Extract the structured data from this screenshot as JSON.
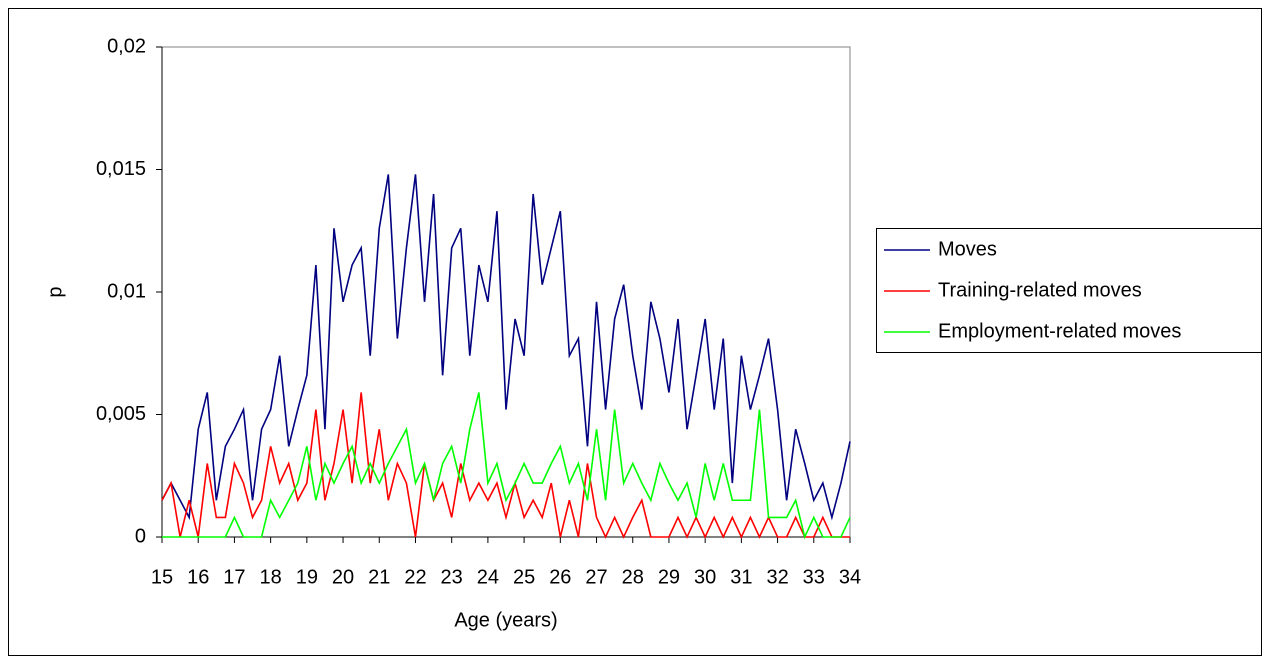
{
  "chart_data": {
    "type": "line",
    "x_label": "Age (years)",
    "y_label": "p",
    "x": [
      15,
      15.25,
      15.5,
      15.75,
      16,
      16.25,
      16.5,
      16.75,
      17,
      17.25,
      17.5,
      17.75,
      18,
      18.25,
      18.5,
      18.75,
      19,
      19.25,
      19.5,
      19.75,
      20,
      20.25,
      20.5,
      20.75,
      21,
      21.25,
      21.5,
      21.75,
      22,
      22.25,
      22.5,
      22.75,
      23,
      23.25,
      23.5,
      23.75,
      24,
      24.25,
      24.5,
      24.75,
      25,
      25.25,
      25.5,
      25.75,
      26,
      26.25,
      26.5,
      26.75,
      27,
      27.25,
      27.5,
      27.75,
      28,
      28.25,
      28.5,
      28.75,
      29,
      29.25,
      29.5,
      29.75,
      30,
      30.25,
      30.5,
      30.75,
      31,
      31.25,
      31.5,
      31.75,
      32,
      32.25,
      32.5,
      32.75,
      33,
      33.25,
      33.5,
      33.75,
      34
    ],
    "series": [
      {
        "name": "Moves",
        "color": "#000080",
        "values": [
          0.0015,
          0.0022,
          0.0015,
          0.0008,
          0.0044,
          0.0059,
          0.0015,
          0.0037,
          0.0044,
          0.0052,
          0.0015,
          0.0044,
          0.0052,
          0.0074,
          0.0037,
          0.0052,
          0.0066,
          0.0111,
          0.0044,
          0.0126,
          0.0096,
          0.0111,
          0.0118,
          0.0074,
          0.0126,
          0.0148,
          0.0081,
          0.0118,
          0.0148,
          0.0096,
          0.014,
          0.0066,
          0.0118,
          0.0126,
          0.0074,
          0.0111,
          0.0096,
          0.0133,
          0.0052,
          0.0089,
          0.0074,
          0.014,
          0.0103,
          0.0118,
          0.0133,
          0.0074,
          0.0081,
          0.0037,
          0.0096,
          0.0052,
          0.0089,
          0.0103,
          0.0074,
          0.0052,
          0.0096,
          0.0081,
          0.0059,
          0.0089,
          0.0044,
          0.0066,
          0.0089,
          0.0052,
          0.0081,
          0.0022,
          0.0074,
          0.0052,
          0.0066,
          0.0081,
          0.0052,
          0.0015,
          0.0044,
          0.003,
          0.0015,
          0.0022,
          0.0008,
          0.0022,
          0.0039
        ]
      },
      {
        "name": "Training-related moves",
        "color": "#ff0000",
        "values": [
          0.0015,
          0.0022,
          0,
          0.0015,
          0,
          0.003,
          0.0008,
          0.0008,
          0.003,
          0.0022,
          0.0008,
          0.0015,
          0.0037,
          0.0022,
          0.003,
          0.0015,
          0.0022,
          0.0052,
          0.0015,
          0.003,
          0.0052,
          0.0022,
          0.0059,
          0.0022,
          0.0044,
          0.0015,
          0.003,
          0.0022,
          0,
          0.003,
          0.0015,
          0.0022,
          0.0008,
          0.003,
          0.0015,
          0.0022,
          0.0015,
          0.0022,
          0.0008,
          0.0022,
          0.0008,
          0.0015,
          0.0008,
          0.0022,
          0,
          0.0015,
          0,
          0.003,
          0.0008,
          0,
          0.0008,
          0,
          0.0008,
          0.0015,
          0,
          0,
          0,
          0.0008,
          0,
          0.0008,
          0,
          0.0008,
          0,
          0.0008,
          0,
          0.0008,
          0,
          0.0008,
          0,
          0,
          0.0008,
          0,
          0,
          0.0008,
          0,
          0,
          0
        ]
      },
      {
        "name": "Employment-related moves",
        "color": "#00ff00",
        "values": [
          0,
          0,
          0,
          0,
          0,
          0,
          0,
          0,
          0.0008,
          0,
          0,
          0,
          0.0015,
          0.0008,
          0.0015,
          0.0022,
          0.0037,
          0.0015,
          0.003,
          0.0022,
          0.003,
          0.0037,
          0.0022,
          0.003,
          0.0022,
          0.003,
          0.0037,
          0.0044,
          0.0022,
          0.003,
          0.0015,
          0.003,
          0.0037,
          0.0022,
          0.0044,
          0.0059,
          0.0022,
          0.003,
          0.0015,
          0.0022,
          0.003,
          0.0022,
          0.0022,
          0.003,
          0.0037,
          0.0022,
          0.003,
          0.0015,
          0.0044,
          0.0015,
          0.0052,
          0.0022,
          0.003,
          0.0022,
          0.0015,
          0.003,
          0.0022,
          0.0015,
          0.0022,
          0.0008,
          0.003,
          0.0015,
          0.003,
          0.0015,
          0.0015,
          0.0015,
          0.0052,
          0.0008,
          0.0008,
          0.0008,
          0.0015,
          0,
          0.0008,
          0,
          0,
          0,
          0.0008
        ]
      }
    ],
    "xlim": [
      15,
      34
    ],
    "xticks": [
      15,
      16,
      17,
      18,
      19,
      20,
      21,
      22,
      23,
      24,
      25,
      26,
      27,
      28,
      29,
      30,
      31,
      32,
      33,
      34
    ],
    "ylim": [
      0,
      0.02
    ],
    "yticks": [
      0,
      {
        "value": 0.005,
        "label": "0,005"
      },
      {
        "value": 0.01,
        "label": "0,01"
      },
      {
        "value": 0.015,
        "label": "0,015"
      },
      {
        "value": 0.02,
        "label": "0,02"
      }
    ],
    "legend": "right"
  }
}
